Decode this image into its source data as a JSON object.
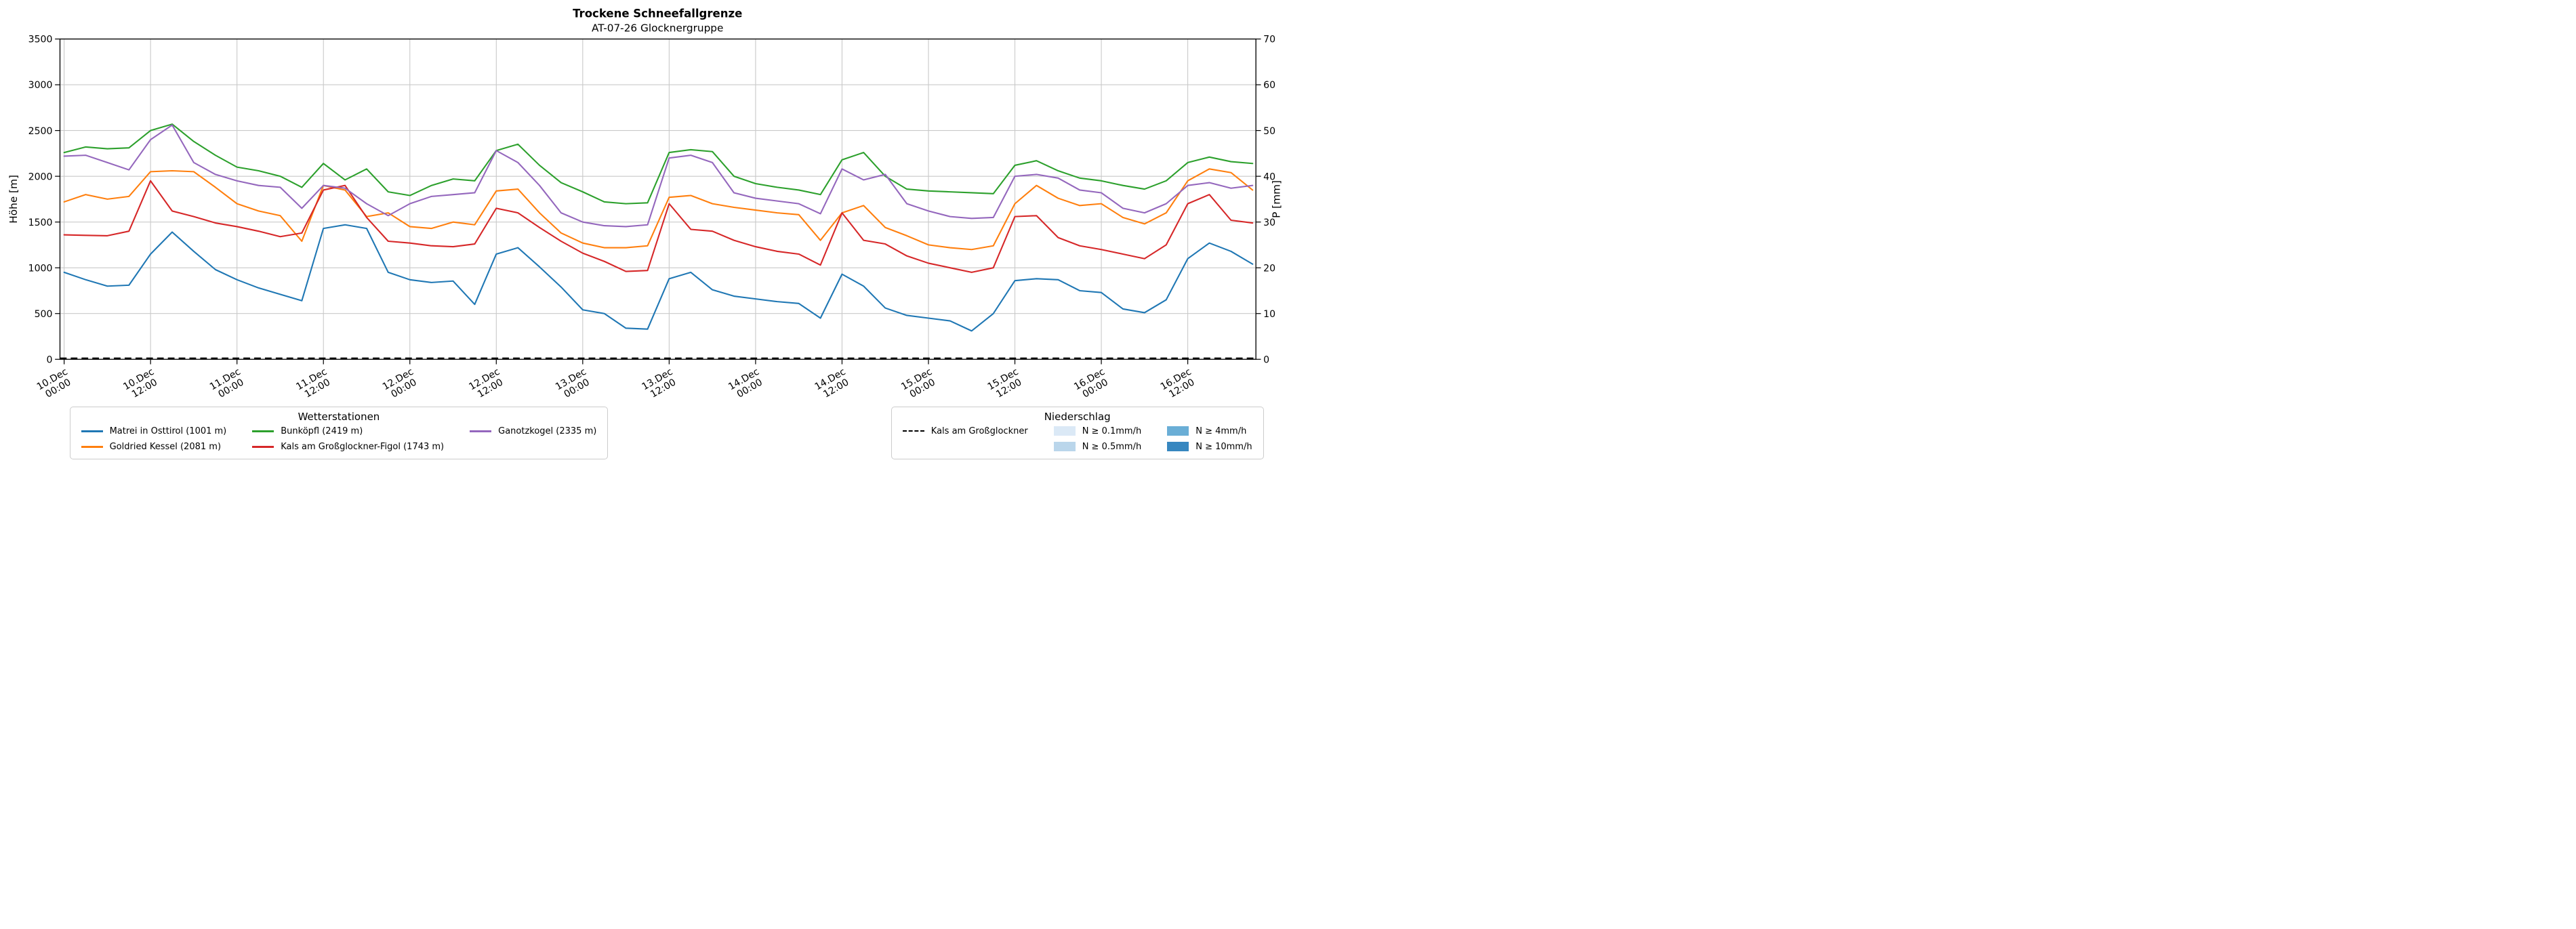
{
  "chart_data": {
    "type": "line",
    "title": "Trockene Schneefallgrenze",
    "subtitle": "AT-07-26 Glocknergruppe",
    "ylabel_left": "Höhe [m]",
    "ylabel_right": "P [mm]",
    "ylim_left": [
      0,
      3500
    ],
    "ylim_right": [
      0,
      70
    ],
    "y_ticks_left": [
      0,
      500,
      1000,
      1500,
      2000,
      2500,
      3000,
      3500
    ],
    "y_ticks_right": [
      0,
      10,
      20,
      30,
      40,
      50,
      60,
      70
    ],
    "grid": true,
    "legend_position": "below",
    "x_unit": "hours since 10.Dec 00:00",
    "x_hours": [
      0,
      3,
      6,
      9,
      12,
      15,
      18,
      21,
      24,
      27,
      30,
      33,
      36,
      39,
      42,
      45,
      48,
      51,
      54,
      57,
      60,
      63,
      66,
      69,
      72,
      75,
      78,
      81,
      84,
      87,
      90,
      93,
      96,
      99,
      102,
      105,
      108,
      111,
      114,
      117,
      120,
      123,
      126,
      129,
      132,
      135,
      138,
      141,
      144,
      147,
      150,
      153,
      156,
      159,
      162,
      165
    ],
    "x_ticks": [
      {
        "hour": 0,
        "line1": "10.Dec",
        "line2": "00:00"
      },
      {
        "hour": 12,
        "line1": "10.Dec",
        "line2": "12:00"
      },
      {
        "hour": 24,
        "line1": "11.Dec",
        "line2": "00:00"
      },
      {
        "hour": 36,
        "line1": "11.Dec",
        "line2": "12:00"
      },
      {
        "hour": 48,
        "line1": "12.Dec",
        "line2": "00:00"
      },
      {
        "hour": 60,
        "line1": "12.Dec",
        "line2": "12:00"
      },
      {
        "hour": 72,
        "line1": "13.Dec",
        "line2": "00:00"
      },
      {
        "hour": 84,
        "line1": "13.Dec",
        "line2": "12:00"
      },
      {
        "hour": 96,
        "line1": "14.Dec",
        "line2": "00:00"
      },
      {
        "hour": 108,
        "line1": "14.Dec",
        "line2": "12:00"
      },
      {
        "hour": 120,
        "line1": "15.Dec",
        "line2": "00:00"
      },
      {
        "hour": 132,
        "line1": "15.Dec",
        "line2": "12:00"
      },
      {
        "hour": 144,
        "line1": "16.Dec",
        "line2": "00:00"
      },
      {
        "hour": 156,
        "line1": "16.Dec",
        "line2": "12:00"
      }
    ],
    "series": [
      {
        "name": "Matrei in Osttirol (1001 m)",
        "color": "#1f77b4",
        "axis": "left",
        "values": [
          950,
          870,
          800,
          810,
          1150,
          1390,
          1180,
          980,
          870,
          780,
          710,
          640,
          1430,
          1470,
          1430,
          950,
          870,
          840,
          855,
          600,
          1150,
          1220,
          1010,
          790,
          540,
          500,
          340,
          330,
          880,
          950,
          760,
          690,
          660,
          630,
          610,
          450,
          930,
          800,
          560,
          480,
          450,
          420,
          310,
          500,
          860,
          880,
          870,
          750,
          730,
          550,
          510,
          650,
          1100,
          1270,
          1180,
          1040
        ]
      },
      {
        "name": "Goldried Kessel (2081 m)",
        "color": "#ff7f0e",
        "axis": "left",
        "values": [
          1720,
          1800,
          1750,
          1780,
          2050,
          2060,
          2050,
          1880,
          1700,
          1620,
          1570,
          1290,
          1900,
          1850,
          1560,
          1600,
          1450,
          1430,
          1500,
          1470,
          1840,
          1860,
          1600,
          1380,
          1270,
          1220,
          1220,
          1240,
          1770,
          1790,
          1700,
          1660,
          1630,
          1600,
          1580,
          1300,
          1600,
          1680,
          1440,
          1350,
          1250,
          1220,
          1200,
          1240,
          1700,
          1900,
          1760,
          1680,
          1700,
          1550,
          1480,
          1600,
          1950,
          2080,
          2040,
          1850
        ]
      },
      {
        "name": "Bunköpfl (2419 m)",
        "color": "#2ca02c",
        "axis": "left",
        "values": [
          2260,
          2320,
          2300,
          2310,
          2500,
          2570,
          2380,
          2230,
          2100,
          2060,
          2000,
          1880,
          2140,
          1960,
          2080,
          1830,
          1790,
          1900,
          1970,
          1950,
          2280,
          2350,
          2120,
          1930,
          1830,
          1720,
          1700,
          1710,
          2260,
          2290,
          2270,
          2000,
          1920,
          1880,
          1850,
          1800,
          2180,
          2260,
          2000,
          1860,
          1840,
          1830,
          1820,
          1810,
          2120,
          2170,
          2060,
          1980,
          1950,
          1900,
          1860,
          1950,
          2150,
          2210,
          2160,
          2140
        ]
      },
      {
        "name": "Kals am Großglockner-Figol (1743 m)",
        "color": "#d62728",
        "axis": "left",
        "values": [
          1360,
          1355,
          1350,
          1400,
          1950,
          1620,
          1560,
          1490,
          1450,
          1400,
          1340,
          1380,
          1850,
          1900,
          1550,
          1290,
          1270,
          1240,
          1230,
          1260,
          1650,
          1600,
          1440,
          1290,
          1160,
          1070,
          960,
          970,
          1700,
          1420,
          1400,
          1300,
          1230,
          1180,
          1150,
          1030,
          1600,
          1300,
          1260,
          1130,
          1050,
          1000,
          950,
          1000,
          1560,
          1570,
          1330,
          1240,
          1200,
          1150,
          1100,
          1250,
          1700,
          1800,
          1520,
          1490
        ]
      },
      {
        "name": "Ganotzkogel (2335 m)",
        "color": "#9467bd",
        "axis": "left",
        "values": [
          2220,
          2230,
          2150,
          2070,
          2400,
          2560,
          2150,
          2020,
          1950,
          1900,
          1880,
          1650,
          1900,
          1870,
          1700,
          1570,
          1700,
          1780,
          1800,
          1820,
          2280,
          2150,
          1900,
          1600,
          1500,
          1460,
          1450,
          1470,
          2200,
          2230,
          2150,
          1820,
          1760,
          1730,
          1700,
          1590,
          2080,
          1960,
          2020,
          1700,
          1620,
          1560,
          1540,
          1550,
          2000,
          2020,
          1980,
          1850,
          1820,
          1650,
          1600,
          1700,
          1900,
          1930,
          1870,
          1900
        ]
      }
    ],
    "precipitation": {
      "name": "Kals am Großglockner",
      "color": "#000000",
      "style": "dashed",
      "axis": "right",
      "constant_value": 0
    }
  },
  "legend_stations": {
    "title": "Wetterstationen",
    "items": [
      {
        "type": "line",
        "label": "Matrei in Osttirol (1001 m)",
        "color": "#1f77b4"
      },
      {
        "type": "line",
        "label": "Goldried Kessel (2081 m)",
        "color": "#ff7f0e"
      },
      {
        "type": "line",
        "label": "Bunköpfl (2419 m)",
        "color": "#2ca02c"
      },
      {
        "type": "line",
        "label": "Kals am Großglockner-Figol (1743 m)",
        "color": "#d62728"
      },
      {
        "type": "line",
        "label": "Ganotzkogel (2335 m)",
        "color": "#9467bd"
      }
    ]
  },
  "legend_precip": {
    "title": "Niederschlag",
    "items": [
      {
        "type": "dashed-line",
        "label": "Kals am Großglockner",
        "color": "#000000"
      },
      {
        "type": "spacer",
        "label": "",
        "color": ""
      },
      {
        "type": "patch",
        "label": "N ≥ 0.1mm/h",
        "color": "#dbe9f6"
      },
      {
        "type": "patch",
        "label": "N ≥ 0.5mm/h",
        "color": "#bad6eb"
      },
      {
        "type": "patch",
        "label": "N ≥ 4mm/h",
        "color": "#6aaed6"
      },
      {
        "type": "patch",
        "label": "N ≥ 10mm/h",
        "color": "#3787c0"
      }
    ]
  }
}
